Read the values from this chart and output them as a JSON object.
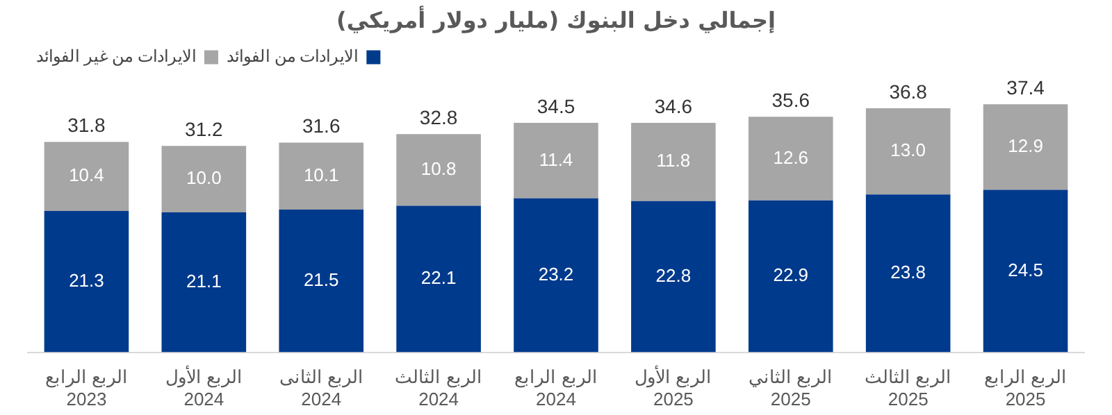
{
  "chart_data": {
    "type": "bar",
    "title": "إجمالي دخل البنوك (مليار دولار أمريكي)",
    "categories": [
      "الربع الرابع\n2023",
      "الربع الأول\n2024",
      "الربع الثانى\n2024",
      "الربع الثالث\n2024",
      "الربع الرابع\n2024",
      "الربع الأول\n2025",
      "الربع الثاني\n2025",
      "الربع الثالث\n2025",
      "الربع الرابع\n2025"
    ],
    "series": [
      {
        "name": "الايرادات من الفوائد",
        "color": "#003a8c",
        "values": [
          21.3,
          21.1,
          21.5,
          22.1,
          23.2,
          22.8,
          22.9,
          23.8,
          24.5
        ],
        "value_labels": [
          "21.3",
          "21.1",
          "21.5",
          "22.1",
          "23.2",
          "22.8",
          "22.9",
          "23.8",
          "24.5"
        ]
      },
      {
        "name": "الايرادات من غير الفوائد",
        "color": "#a6a6a6",
        "values": [
          10.4,
          10.0,
          10.1,
          10.8,
          11.4,
          11.8,
          12.6,
          13.0,
          12.9
        ],
        "value_labels": [
          "10.4",
          "10.0",
          "10.1",
          "10.8",
          "11.4",
          "11.8",
          "12.6",
          "13.0",
          "12.9"
        ]
      }
    ],
    "stacked": true,
    "totals": [
      "31.8",
      "31.2",
      "31.6",
      "32.8",
      "34.5",
      "34.6",
      "35.6",
      "36.8",
      "37.4"
    ],
    "legend": "top left",
    "grid": false
  }
}
